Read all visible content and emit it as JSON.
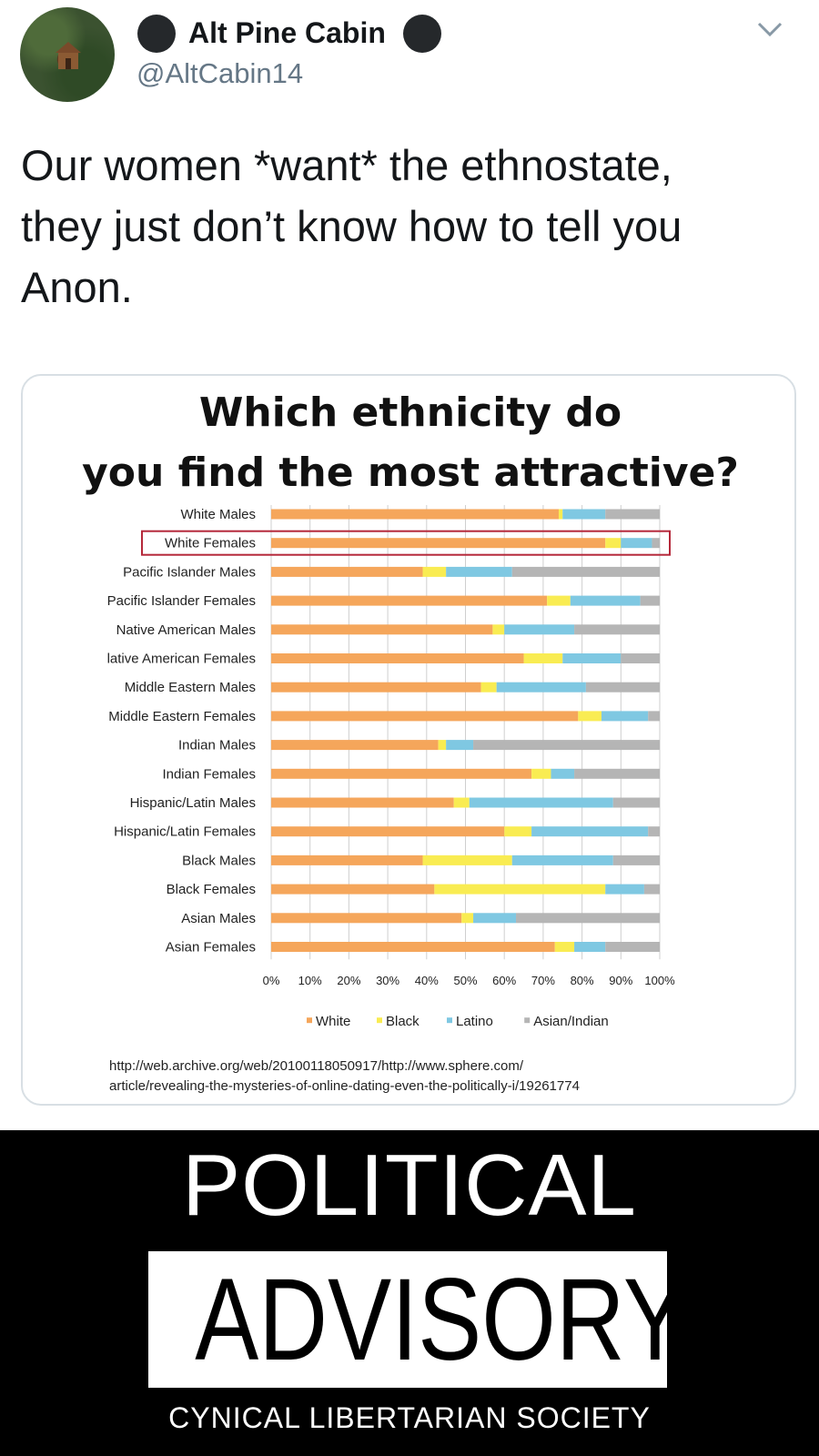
{
  "tweet": {
    "display_name": "Alt Pine Cabin",
    "handle": "@AltCabin14",
    "text_lines": [
      "Our women *want* the ethnostate,",
      "they just don’t know how to tell you",
      "Anon."
    ]
  },
  "chart_data": {
    "type": "bar",
    "stacked": true,
    "orientation": "horizontal",
    "title_lines": [
      "Which ethnicity do",
      "you find the most attractive?"
    ],
    "categories": [
      "White Males",
      "White Females",
      "Pacific Islander Males",
      "Pacific Islander Females",
      "Native American Males",
      "lative American Females",
      "Middle Eastern Males",
      "Middle Eastern Females",
      "Indian Males",
      "Indian Females",
      "Hispanic/Latin Males",
      "Hispanic/Latin Females",
      "Black Males",
      "Black Females",
      "Asian Males",
      "Asian Females"
    ],
    "highlighted_category": "White Females",
    "series": [
      {
        "name": "White",
        "color": "#f5a65b",
        "values": [
          74,
          86,
          39,
          71,
          57,
          65,
          54,
          79,
          43,
          67,
          47,
          60,
          39,
          42,
          49,
          73
        ]
      },
      {
        "name": "Black",
        "color": "#f9ec52",
        "values": [
          1,
          4,
          6,
          6,
          3,
          10,
          4,
          6,
          2,
          5,
          4,
          7,
          23,
          44,
          3,
          5
        ]
      },
      {
        "name": "Latino",
        "color": "#7fc8e2",
        "values": [
          11,
          8,
          17,
          18,
          18,
          15,
          23,
          12,
          7,
          6,
          37,
          30,
          26,
          10,
          11,
          8
        ]
      },
      {
        "name": "Asian/Indian",
        "color": "#b5b5b5",
        "values": [
          14,
          2,
          38,
          5,
          22,
          10,
          19,
          3,
          48,
          22,
          12,
          3,
          12,
          4,
          37,
          14
        ]
      }
    ],
    "x_ticks": [
      "0%",
      "10%",
      "20%",
      "30%",
      "40%",
      "50%",
      "60%",
      "70%",
      "80%",
      "90%",
      "100%"
    ],
    "xlim": [
      0,
      100
    ],
    "legend_position": "bottom",
    "source_lines": [
      "http://web.archive.org/web/20100118050917/http://www.sphere.com/",
      "article/revealing-the-mysteries-of-online-dating-even-the-politically-i/19261774"
    ]
  },
  "advisory": {
    "line1": "POLITICAL",
    "line2": "ADVISORY",
    "line3": "CYNICAL LIBERTARIAN SOCIETY"
  }
}
